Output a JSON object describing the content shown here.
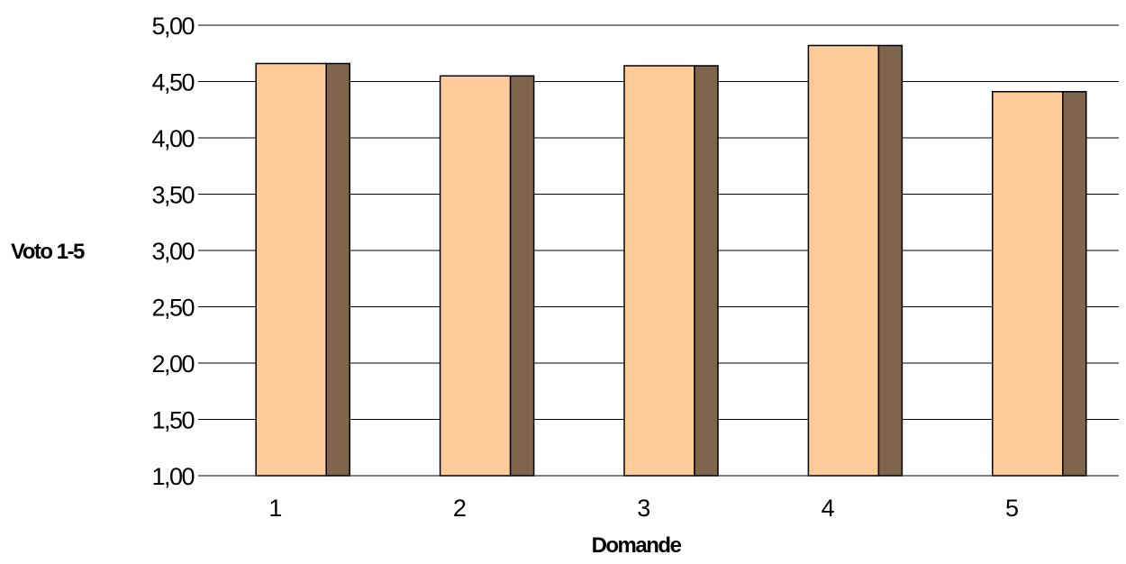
{
  "chart_data": {
    "type": "bar",
    "xlabel": "Domande",
    "ylabel": "Voto 1-5",
    "categories": [
      "1",
      "2",
      "3",
      "4",
      "5"
    ],
    "values": [
      4.66,
      4.55,
      4.64,
      4.82,
      4.41
    ],
    "ylim": [
      1.0,
      5.0
    ],
    "yticks": [
      "1,00",
      "1,50",
      "2,00",
      "2,50",
      "3,00",
      "3,50",
      "4,00",
      "4,50",
      "5,00"
    ],
    "ytick_values": [
      1.0,
      1.5,
      2.0,
      2.5,
      3.0,
      3.5,
      4.0,
      4.5,
      5.0
    ],
    "grid": true,
    "legend": "none",
    "colors": {
      "front": "#ffcc99",
      "side": "#80654d"
    }
  }
}
